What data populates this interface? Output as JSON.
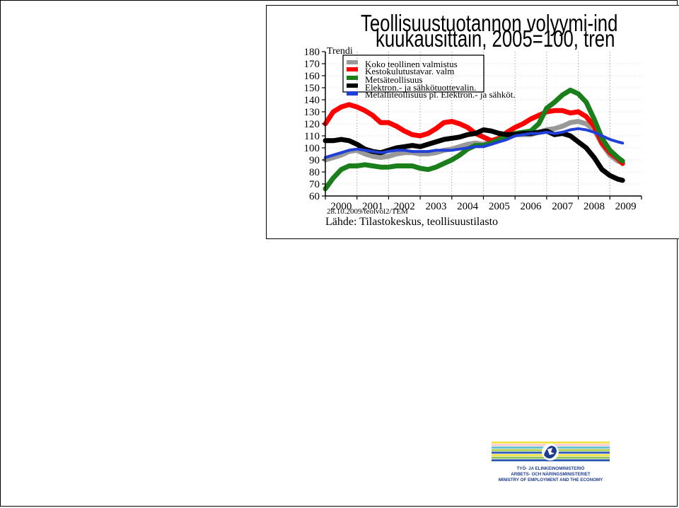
{
  "slide": {
    "title_line1": "Teollisuustuotannon volyymi-ind",
    "title_line2": "kuukausittain, 2005=100, tren",
    "footer_code": "28.10.2009/teolvol2/TEM",
    "source": "Lähde: Tilastokeskus, teollisuustilasto"
  },
  "chart_data": {
    "type": "line",
    "ylabel": "Trendi",
    "ylim": [
      60,
      180
    ],
    "yticks": [
      60,
      70,
      80,
      90,
      100,
      110,
      120,
      130,
      140,
      150,
      160,
      170,
      180
    ],
    "xlim": [
      2000,
      2010
    ],
    "xticks": [
      2000,
      2001,
      2002,
      2003,
      2004,
      2005,
      2006,
      2007,
      2008,
      2009
    ],
    "grid": true,
    "legend_position": "top",
    "series": [
      {
        "name": "Koko teollinen valmistus",
        "color": "#999999",
        "points": [
          [
            2000.0,
            90
          ],
          [
            2000.25,
            92
          ],
          [
            2000.5,
            94
          ],
          [
            2000.75,
            97
          ],
          [
            2001.0,
            98
          ],
          [
            2001.25,
            95
          ],
          [
            2001.5,
            93
          ],
          [
            2001.75,
            92
          ],
          [
            2002.0,
            93
          ],
          [
            2002.25,
            95
          ],
          [
            2002.5,
            96
          ],
          [
            2002.75,
            96
          ],
          [
            2003.0,
            95
          ],
          [
            2003.25,
            95
          ],
          [
            2003.5,
            96
          ],
          [
            2003.75,
            98
          ],
          [
            2004.0,
            99
          ],
          [
            2004.25,
            101
          ],
          [
            2004.5,
            103
          ],
          [
            2004.75,
            104
          ],
          [
            2005.0,
            103
          ],
          [
            2005.25,
            105
          ],
          [
            2005.5,
            108
          ],
          [
            2005.75,
            110
          ],
          [
            2006.0,
            111
          ],
          [
            2006.25,
            111
          ],
          [
            2006.5,
            111
          ],
          [
            2006.75,
            113
          ],
          [
            2007.0,
            115
          ],
          [
            2007.25,
            116
          ],
          [
            2007.5,
            118
          ],
          [
            2007.75,
            121
          ],
          [
            2008.0,
            122
          ],
          [
            2008.25,
            120
          ],
          [
            2008.5,
            115
          ],
          [
            2008.75,
            103
          ],
          [
            2009.0,
            94
          ],
          [
            2009.25,
            89
          ],
          [
            2009.4,
            88
          ]
        ]
      },
      {
        "name": "Kestokulutustavar. valm",
        "color": "#ff0000",
        "points": [
          [
            2000.0,
            120
          ],
          [
            2000.25,
            130
          ],
          [
            2000.5,
            134
          ],
          [
            2000.75,
            136
          ],
          [
            2001.0,
            134
          ],
          [
            2001.25,
            131
          ],
          [
            2001.5,
            127
          ],
          [
            2001.75,
            121
          ],
          [
            2002.0,
            121
          ],
          [
            2002.25,
            118
          ],
          [
            2002.5,
            114
          ],
          [
            2002.75,
            111
          ],
          [
            2003.0,
            110
          ],
          [
            2003.25,
            112
          ],
          [
            2003.5,
            116
          ],
          [
            2003.75,
            121
          ],
          [
            2004.0,
            122
          ],
          [
            2004.25,
            120
          ],
          [
            2004.5,
            117
          ],
          [
            2004.75,
            112
          ],
          [
            2005.0,
            109
          ],
          [
            2005.25,
            106
          ],
          [
            2005.5,
            108
          ],
          [
            2005.75,
            113
          ],
          [
            2006.0,
            117
          ],
          [
            2006.25,
            120
          ],
          [
            2006.5,
            124
          ],
          [
            2006.75,
            127
          ],
          [
            2007.0,
            130
          ],
          [
            2007.25,
            131
          ],
          [
            2007.5,
            131
          ],
          [
            2007.75,
            129
          ],
          [
            2008.0,
            130
          ],
          [
            2008.25,
            126
          ],
          [
            2008.5,
            118
          ],
          [
            2008.75,
            104
          ],
          [
            2009.0,
            96
          ],
          [
            2009.25,
            91
          ],
          [
            2009.4,
            87
          ]
        ]
      },
      {
        "name": "Metsäteollisuus",
        "color": "#1a7f1a",
        "points": [
          [
            2000.0,
            66
          ],
          [
            2000.25,
            75
          ],
          [
            2000.5,
            82
          ],
          [
            2000.75,
            85
          ],
          [
            2001.0,
            85
          ],
          [
            2001.25,
            86
          ],
          [
            2001.5,
            85
          ],
          [
            2001.75,
            84
          ],
          [
            2002.0,
            84
          ],
          [
            2002.25,
            85
          ],
          [
            2002.5,
            85
          ],
          [
            2002.75,
            85
          ],
          [
            2003.0,
            83
          ],
          [
            2003.25,
            82
          ],
          [
            2003.5,
            84
          ],
          [
            2003.75,
            87
          ],
          [
            2004.0,
            90
          ],
          [
            2004.25,
            94
          ],
          [
            2004.5,
            99
          ],
          [
            2004.75,
            102
          ],
          [
            2005.0,
            102
          ],
          [
            2005.25,
            104
          ],
          [
            2005.5,
            107
          ],
          [
            2005.75,
            110
          ],
          [
            2006.0,
            112
          ],
          [
            2006.25,
            113
          ],
          [
            2006.5,
            114
          ],
          [
            2006.75,
            120
          ],
          [
            2007.0,
            133
          ],
          [
            2007.25,
            138
          ],
          [
            2007.5,
            144
          ],
          [
            2007.75,
            148
          ],
          [
            2008.0,
            145
          ],
          [
            2008.25,
            138
          ],
          [
            2008.5,
            124
          ],
          [
            2008.75,
            108
          ],
          [
            2009.0,
            98
          ],
          [
            2009.25,
            92
          ],
          [
            2009.4,
            89
          ]
        ]
      },
      {
        "name": "Elektron.- ja sähkötuottevalin.",
        "color": "#000000",
        "points": [
          [
            2000.0,
            106
          ],
          [
            2000.25,
            106
          ],
          [
            2000.5,
            107
          ],
          [
            2000.75,
            106
          ],
          [
            2001.0,
            103
          ],
          [
            2001.25,
            99
          ],
          [
            2001.5,
            97
          ],
          [
            2001.75,
            96
          ],
          [
            2002.0,
            98
          ],
          [
            2002.25,
            100
          ],
          [
            2002.5,
            101
          ],
          [
            2002.75,
            102
          ],
          [
            2003.0,
            101
          ],
          [
            2003.25,
            103
          ],
          [
            2003.5,
            105
          ],
          [
            2003.75,
            107
          ],
          [
            2004.0,
            108
          ],
          [
            2004.25,
            109
          ],
          [
            2004.5,
            111
          ],
          [
            2004.75,
            112
          ],
          [
            2005.0,
            115
          ],
          [
            2005.25,
            114
          ],
          [
            2005.5,
            112
          ],
          [
            2005.75,
            111
          ],
          [
            2006.0,
            111
          ],
          [
            2006.25,
            112
          ],
          [
            2006.5,
            112
          ],
          [
            2006.75,
            113
          ],
          [
            2007.0,
            114
          ],
          [
            2007.25,
            111
          ],
          [
            2007.5,
            112
          ],
          [
            2007.75,
            110
          ],
          [
            2008.0,
            105
          ],
          [
            2008.25,
            100
          ],
          [
            2008.5,
            92
          ],
          [
            2008.75,
            82
          ],
          [
            2009.0,
            77
          ],
          [
            2009.25,
            74
          ],
          [
            2009.4,
            73
          ]
        ]
      },
      {
        "name": "Metalliteollisuus pl. Elektron.- ja sähköt.",
        "color": "#1f3fd6",
        "points": [
          [
            2000.0,
            92
          ],
          [
            2000.25,
            94
          ],
          [
            2000.5,
            96
          ],
          [
            2000.75,
            98
          ],
          [
            2001.0,
            99
          ],
          [
            2001.25,
            98
          ],
          [
            2001.5,
            97
          ],
          [
            2001.75,
            96
          ],
          [
            2002.0,
            97
          ],
          [
            2002.25,
            98
          ],
          [
            2002.5,
            98
          ],
          [
            2002.75,
            97
          ],
          [
            2003.0,
            97
          ],
          [
            2003.25,
            97
          ],
          [
            2003.5,
            98
          ],
          [
            2003.75,
            98
          ],
          [
            2004.0,
            98
          ],
          [
            2004.25,
            99
          ],
          [
            2004.5,
            100
          ],
          [
            2004.75,
            101
          ],
          [
            2005.0,
            101
          ],
          [
            2005.25,
            103
          ],
          [
            2005.5,
            105
          ],
          [
            2005.75,
            107
          ],
          [
            2006.0,
            110
          ],
          [
            2006.25,
            111
          ],
          [
            2006.5,
            112
          ],
          [
            2006.75,
            112
          ],
          [
            2007.0,
            113
          ],
          [
            2007.25,
            112
          ],
          [
            2007.5,
            113
          ],
          [
            2007.75,
            115
          ],
          [
            2008.0,
            116
          ],
          [
            2008.25,
            115
          ],
          [
            2008.5,
            113
          ],
          [
            2008.75,
            110
          ],
          [
            2009.0,
            107
          ],
          [
            2009.25,
            105
          ],
          [
            2009.4,
            104
          ]
        ]
      }
    ]
  },
  "logo": {
    "line1": "TYÖ- JA ELINKEINOMINISTERIÖ",
    "line2": "ARBETS- OCH NÄRINGSMINISTERIET",
    "line3": "MINISTRY OF EMPLOYMENT AND THE ECONOMY",
    "stripe_colors": [
      "#f1e24a",
      "#f7c6cf",
      "#5fc1cf",
      "#a8cc4b",
      "#2c59b4",
      "#f1e24a",
      "#8fbf52",
      "#2c59b4"
    ]
  }
}
